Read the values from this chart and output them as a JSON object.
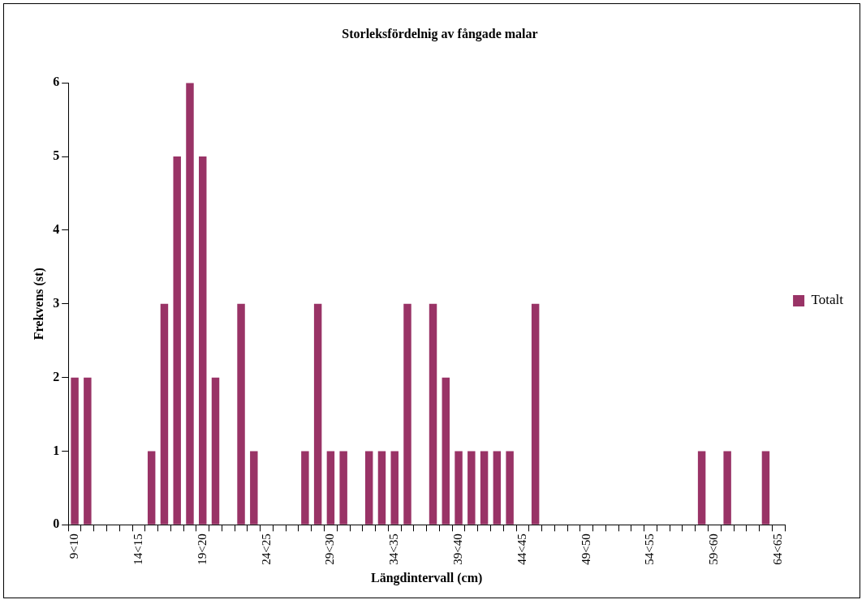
{
  "chart_data": {
    "type": "bar",
    "title": "Storleksfördelnig av fångade malar",
    "xlabel": "Längdintervall (cm)",
    "ylabel": "Frekvens (st)",
    "categories": [
      "9<10",
      null,
      null,
      null,
      null,
      "14<15",
      null,
      null,
      null,
      null,
      "19<20",
      null,
      null,
      null,
      null,
      "24<25",
      null,
      null,
      null,
      null,
      "29<30",
      null,
      null,
      null,
      null,
      "34<35",
      null,
      null,
      null,
      null,
      "39<40",
      null,
      null,
      null,
      null,
      "44<45",
      null,
      null,
      null,
      null,
      "49<50",
      null,
      null,
      null,
      null,
      "54<55",
      null,
      null,
      null,
      null,
      "59<60",
      null,
      null,
      null,
      null,
      "64<65"
    ],
    "series": [
      {
        "name": "Totalt",
        "color": "#993366",
        "values": [
          2,
          2,
          0,
          0,
          0,
          0,
          1,
          3,
          5,
          6,
          5,
          2,
          0,
          3,
          1,
          0,
          0,
          0,
          1,
          3,
          1,
          1,
          0,
          1,
          1,
          1,
          3,
          0,
          3,
          2,
          1,
          1,
          1,
          1,
          1,
          0,
          3,
          0,
          0,
          0,
          0,
          0,
          0,
          0,
          0,
          0,
          0,
          0,
          0,
          1,
          0,
          1,
          0,
          0,
          1,
          0
        ]
      }
    ],
    "ylim": [
      0,
      6
    ],
    "yticks": [
      0,
      1,
      2,
      3,
      4,
      5,
      6
    ],
    "grid": false,
    "legend": "right"
  }
}
